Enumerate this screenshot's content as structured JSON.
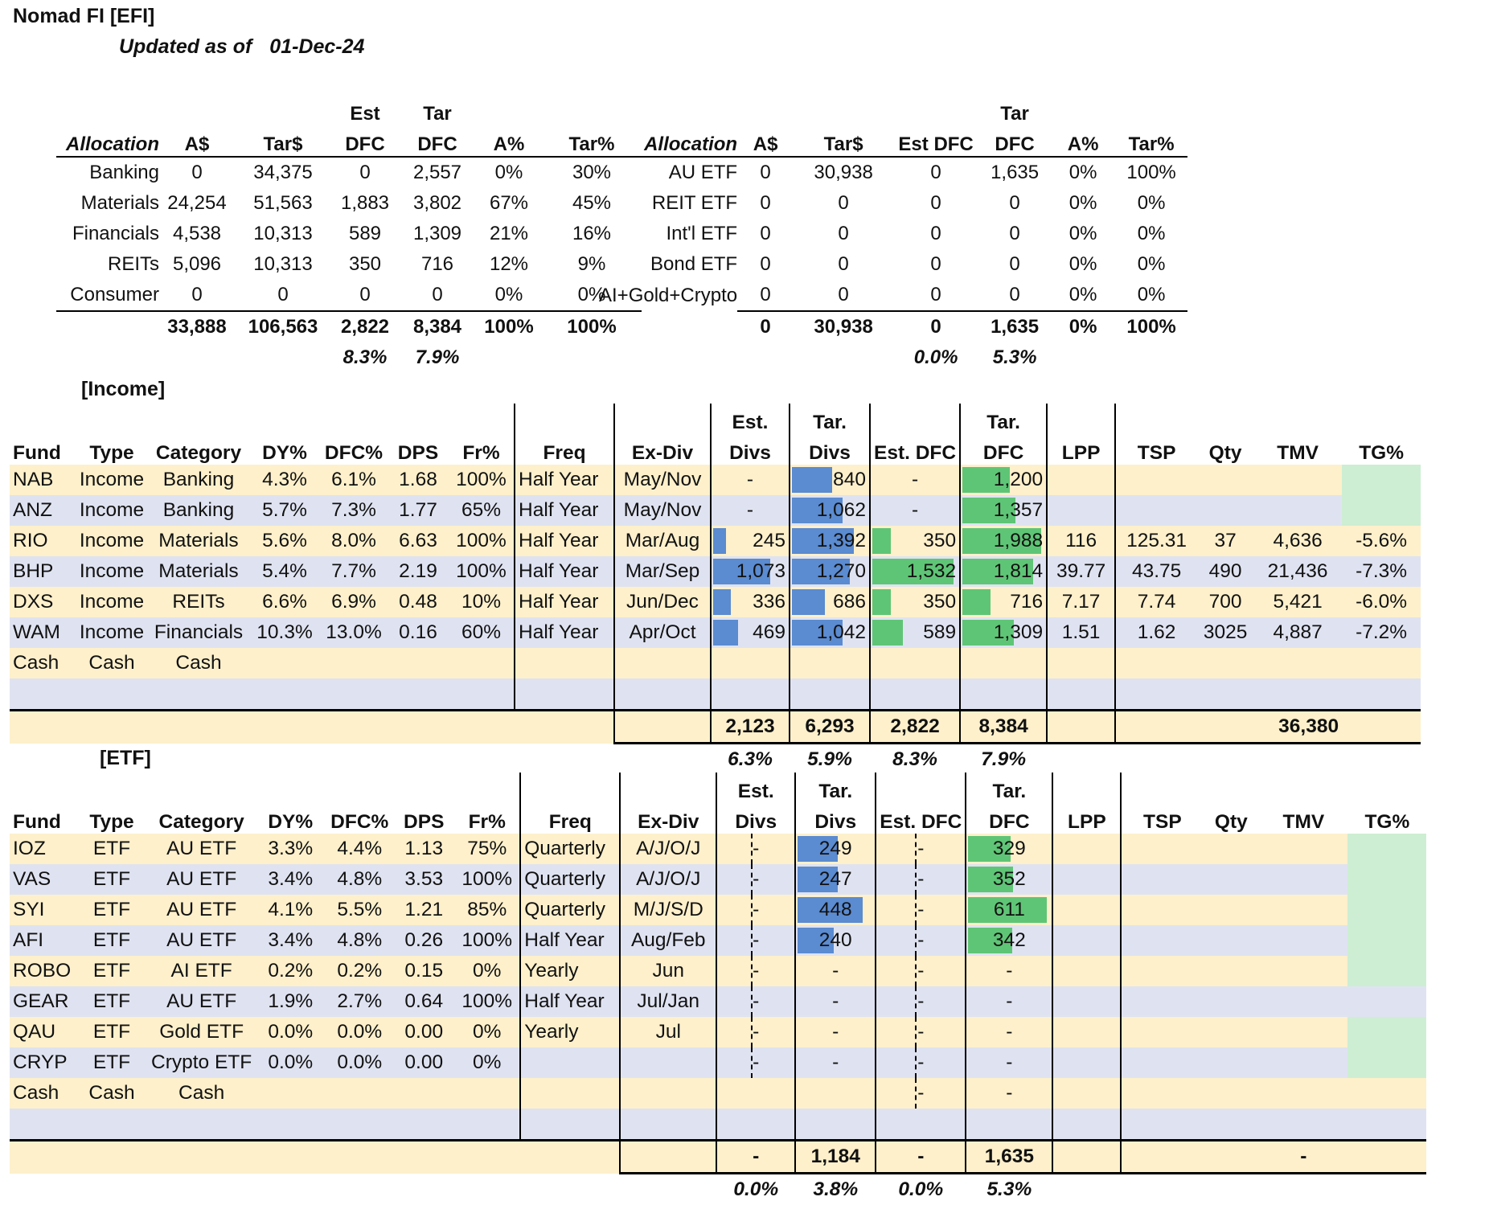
{
  "header": {
    "title": "Nomad FI [EFI]",
    "updated_label": "Updated as of",
    "updated_date": "01-Dec-24"
  },
  "alloc_left": {
    "head_top": [
      "",
      "",
      "",
      "Est",
      "Tar",
      "",
      ""
    ],
    "head": [
      "Allocation",
      "A$",
      "Tar$",
      "DFC",
      "DFC",
      "A%",
      "Tar%"
    ],
    "rows": [
      [
        "Banking",
        "0",
        "34,375",
        "0",
        "2,557",
        "0%",
        "30%"
      ],
      [
        "Materials",
        "24,254",
        "51,563",
        "1,883",
        "3,802",
        "67%",
        "45%"
      ],
      [
        "Financials",
        "4,538",
        "10,313",
        "589",
        "1,309",
        "21%",
        "16%"
      ],
      [
        "REITs",
        "5,096",
        "10,313",
        "350",
        "716",
        "12%",
        "9%"
      ],
      [
        "Consumer",
        "0",
        "0",
        "0",
        "0",
        "0%",
        "0%"
      ]
    ],
    "total": [
      "",
      "33,888",
      "106,563",
      "2,822",
      "8,384",
      "100%",
      "100%"
    ],
    "pct": [
      "",
      "",
      "",
      "8.3%",
      "7.9%",
      "",
      ""
    ]
  },
  "alloc_right": {
    "head_top": [
      "",
      "",
      "",
      "",
      "Tar",
      "",
      ""
    ],
    "head": [
      "Allocation",
      "A$",
      "Tar$",
      "Est DFC",
      "DFC",
      "A%",
      "Tar%"
    ],
    "rows": [
      [
        "AU ETF",
        "0",
        "30,938",
        "0",
        "1,635",
        "0%",
        "100%"
      ],
      [
        "REIT ETF",
        "0",
        "0",
        "0",
        "0",
        "0%",
        "0%"
      ],
      [
        "Int'l ETF",
        "0",
        "0",
        "0",
        "0",
        "0%",
        "0%"
      ],
      [
        "Bond ETF",
        "0",
        "0",
        "0",
        "0",
        "0%",
        "0%"
      ],
      [
        "AI+Gold+Crypto",
        "0",
        "0",
        "0",
        "0",
        "0%",
        "0%"
      ]
    ],
    "total": [
      "",
      "0",
      "30,938",
      "0",
      "1,635",
      "0%",
      "100%"
    ],
    "pct": [
      "",
      "",
      "",
      "0.0%",
      "5.3%",
      "",
      ""
    ]
  },
  "income": {
    "label": "[Income]",
    "head_top": [
      "",
      "",
      "",
      "",
      "",
      "",
      "",
      "",
      "",
      "Est.",
      "Tar.",
      "",
      "Tar.",
      "",
      "",
      "",
      "",
      ""
    ],
    "head": [
      "Fund",
      "Type",
      "Category",
      "DY%",
      "DFC%",
      "DPS",
      "Fr%",
      "Freq",
      "Ex-Div",
      "Divs",
      "Divs",
      "Est. DFC",
      "DFC",
      "LPP",
      "TSP",
      "Qty",
      "TMV",
      "TG%"
    ],
    "rows": [
      [
        "NAB",
        "Income",
        "Banking",
        "4.3%",
        "6.1%",
        "1.68",
        "100%",
        "Half Year",
        "May/Nov",
        "-",
        "840",
        "-",
        "1,200",
        "",
        "",
        "",
        "",
        ""
      ],
      [
        "ANZ",
        "Income",
        "Banking",
        "5.7%",
        "7.3%",
        "1.77",
        "65%",
        "Half Year",
        "May/Nov",
        "-",
        "1,062",
        "-",
        "1,357",
        "",
        "",
        "",
        "",
        ""
      ],
      [
        "RIO",
        "Income",
        "Materials",
        "5.6%",
        "8.0%",
        "6.63",
        "100%",
        "Half Year",
        "Mar/Aug",
        "245",
        "1,392",
        "350",
        "1,988",
        "116",
        "125.31",
        "37",
        "4,636",
        "-5.6%"
      ],
      [
        "BHP",
        "Income",
        "Materials",
        "5.4%",
        "7.7%",
        "2.19",
        "100%",
        "Half Year",
        "Mar/Sep",
        "1,073",
        "1,270",
        "1,532",
        "1,814",
        "39.77",
        "43.75",
        "490",
        "21,436",
        "-7.3%"
      ],
      [
        "DXS",
        "Income",
        "REITs",
        "6.6%",
        "6.9%",
        "0.48",
        "10%",
        "Half Year",
        "Jun/Dec",
        "336",
        "686",
        "350",
        "716",
        "7.17",
        "7.74",
        "700",
        "5,421",
        "-6.0%"
      ],
      [
        "WAM",
        "Income",
        "Financials",
        "10.3%",
        "13.0%",
        "0.16",
        "60%",
        "Half Year",
        "Apr/Oct",
        "469",
        "1,042",
        "589",
        "1,309",
        "1.51",
        "1.62",
        "3025",
        "4,887",
        "-7.2%"
      ],
      [
        "Cash",
        "Cash",
        "Cash",
        "",
        "",
        "",
        "",
        "",
        "",
        "",
        "",
        "",
        "",
        "",
        "",
        "",
        "",
        ""
      ],
      [
        "",
        "",
        "",
        "",
        "",
        "",
        "",
        "",
        "",
        "",
        "",
        "",
        "",
        "",
        "",
        "",
        "",
        ""
      ]
    ],
    "bars": {
      "est_divs": [
        0,
        0,
        0.18,
        0.8,
        0.25,
        0.35,
        0,
        0
      ],
      "tar_divs": [
        0.55,
        0.7,
        0.85,
        0.8,
        0.45,
        0.7,
        0,
        0
      ],
      "est_dfc": [
        0,
        0,
        0.23,
        1.0,
        0.23,
        0.38,
        0,
        0
      ],
      "tar_dfc": [
        0.6,
        0.68,
        1.0,
        0.9,
        0.36,
        0.66,
        0,
        0
      ]
    },
    "total": {
      "est_divs": "2,123",
      "tar_divs": "6,293",
      "est_dfc": "2,822",
      "tar_dfc": "8,384",
      "tmv": "36,380"
    },
    "pct": {
      "est_divs": "6.3%",
      "tar_divs": "5.9%",
      "est_dfc": "8.3%",
      "tar_dfc": "7.9%"
    }
  },
  "etf": {
    "label": "[ETF]",
    "head_top": [
      "",
      "",
      "",
      "",
      "",
      "",
      "",
      "",
      "",
      "Est.",
      "Tar.",
      "",
      "Tar.",
      "",
      "",
      "",
      "",
      ""
    ],
    "head": [
      "Fund",
      "Type",
      "Category",
      "DY%",
      "DFC%",
      "DPS",
      "Fr%",
      "Freq",
      "Ex-Div",
      "Divs",
      "Divs",
      "Est. DFC",
      "DFC",
      "LPP",
      "TSP",
      "Qty",
      "TMV",
      "TG%"
    ],
    "rows": [
      [
        "IOZ",
        "ETF",
        "AU ETF",
        "3.3%",
        "4.4%",
        "1.13",
        "75%",
        "Quarterly",
        "A/J/O/J",
        "-",
        "249",
        "-",
        "329",
        "",
        "",
        "",
        "",
        ""
      ],
      [
        "VAS",
        "ETF",
        "AU ETF",
        "3.4%",
        "4.8%",
        "3.53",
        "100%",
        "Quarterly",
        "A/J/O/J",
        "-",
        "247",
        "-",
        "352",
        "",
        "",
        "",
        "",
        ""
      ],
      [
        "SYI",
        "ETF",
        "AU ETF",
        "4.1%",
        "5.5%",
        "1.21",
        "85%",
        "Quarterly",
        "M/J/S/D",
        "-",
        "448",
        "-",
        "611",
        "",
        "",
        "",
        "",
        ""
      ],
      [
        "AFI",
        "ETF",
        "AU ETF",
        "3.4%",
        "4.8%",
        "0.26",
        "100%",
        "Half Year",
        "Aug/Feb",
        "-",
        "240",
        "-",
        "342",
        "",
        "",
        "",
        "",
        ""
      ],
      [
        "ROBO",
        "ETF",
        "AI ETF",
        "0.2%",
        "0.2%",
        "0.15",
        "0%",
        "Yearly",
        "Jun",
        "-",
        "-",
        "-",
        "-",
        "",
        "",
        "",
        "",
        ""
      ],
      [
        "GEAR",
        "ETF",
        "AU ETF",
        "1.9%",
        "2.7%",
        "0.64",
        "100%",
        "Half Year",
        "Jul/Jan",
        "-",
        "-",
        "-",
        "-",
        "",
        "",
        "",
        "",
        ""
      ],
      [
        "QAU",
        "ETF",
        "Gold ETF",
        "0.0%",
        "0.0%",
        "0.00",
        "0%",
        "Yearly",
        "Jul",
        "-",
        "-",
        "-",
        "-",
        "",
        "",
        "",
        "",
        ""
      ],
      [
        "CRYP",
        "ETF",
        "Crypto ETF",
        "0.0%",
        "0.0%",
        "0.00",
        "0%",
        "",
        "",
        "-",
        "-",
        "-",
        "-",
        "",
        "",
        "",
        "",
        ""
      ],
      [
        "Cash",
        "Cash",
        "Cash",
        "",
        "",
        "",
        "",
        "",
        "",
        "",
        "",
        "-",
        "-",
        "",
        "",
        "",
        "",
        ""
      ],
      [
        "",
        "",
        "",
        "",
        "",
        "",
        "",
        "",
        "",
        "",
        "",
        "",
        "",
        "",
        "",
        "",
        "",
        ""
      ]
    ],
    "bars": {
      "tar_divs": [
        0.55,
        0.55,
        0.9,
        0.5,
        0,
        0,
        0,
        0,
        0,
        0
      ],
      "tar_dfc": [
        0.54,
        0.57,
        1.0,
        0.56,
        0,
        0,
        0,
        0,
        0,
        0
      ]
    },
    "total": {
      "est_divs": "-",
      "tar_divs": "1,184",
      "est_dfc": "-",
      "tar_dfc": "1,635",
      "tmv": "-"
    },
    "pct": {
      "est_divs": "0.0%",
      "tar_divs": "3.8%",
      "est_dfc": "0.0%",
      "tar_dfc": "5.3%"
    }
  },
  "colors": {
    "row_yellow": "#fdf0cb",
    "row_blue": "#dfe3f1",
    "bar_blue": "#5b8bd0",
    "bar_green": "#5fc576",
    "tg_green": "#cdeed3"
  }
}
